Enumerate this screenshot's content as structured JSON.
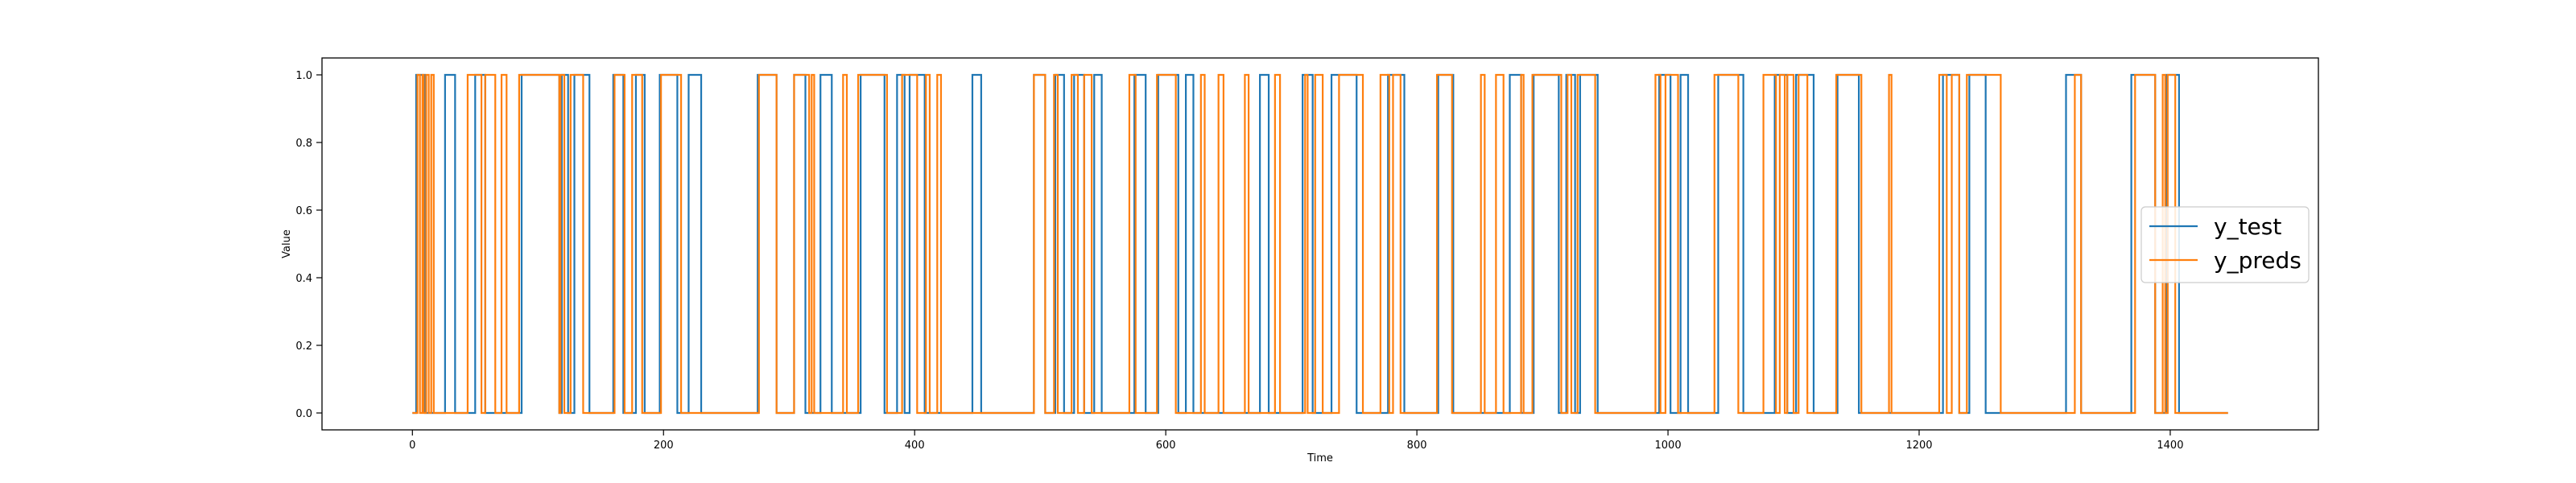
{
  "colors": {
    "y_test": "#1f77b4",
    "y_preds": "#ff7f0e",
    "axes": "#000000",
    "background": "#ffffff"
  },
  "chart_data": {
    "type": "line",
    "title": "",
    "xlabel": "Time",
    "ylabel": "Value",
    "xlim": [
      -72,
      1518
    ],
    "ylim": [
      -0.05,
      1.05
    ],
    "grid": false,
    "legend_placement": "center-right",
    "xticks": [
      0,
      200,
      400,
      600,
      800,
      1000,
      1200,
      1400
    ],
    "xtick_labels": [
      "0",
      "200",
      "400",
      "600",
      "800",
      "1000",
      "1200",
      "1400"
    ],
    "yticks": [
      0.0,
      0.2,
      0.4,
      0.6,
      0.8,
      1.0
    ],
    "ytick_labels": [
      "0.0",
      "0.2",
      "0.4",
      "0.6",
      "0.8",
      "1.0"
    ],
    "x_start": 0,
    "x_end": 1446,
    "series": [
      {
        "name": "y_test",
        "color_key": "y_test",
        "on_intervals": [
          [
            3,
            10
          ],
          [
            26,
            34
          ],
          [
            50,
            58
          ],
          [
            87,
            117
          ],
          [
            119,
            124
          ],
          [
            129,
            141
          ],
          [
            160,
            168
          ],
          [
            178,
            185
          ],
          [
            197,
            211
          ],
          [
            220,
            230
          ],
          [
            275,
            290
          ],
          [
            304,
            313
          ],
          [
            325,
            334
          ],
          [
            357,
            376
          ],
          [
            386,
            392
          ],
          [
            396,
            408
          ],
          [
            446,
            453
          ],
          [
            495,
            504
          ],
          [
            512,
            519
          ],
          [
            527,
            535
          ],
          [
            543,
            549
          ],
          [
            575,
            584
          ],
          [
            594,
            610
          ],
          [
            616,
            622
          ],
          [
            675,
            682
          ],
          [
            709,
            717
          ],
          [
            732,
            752
          ],
          [
            777,
            790
          ],
          [
            817,
            829
          ],
          [
            874,
            883
          ],
          [
            893,
            913
          ],
          [
            919,
            926
          ],
          [
            930,
            944
          ],
          [
            993,
            1002
          ],
          [
            1010,
            1016
          ],
          [
            1040,
            1060
          ],
          [
            1085,
            1095
          ],
          [
            1102,
            1116
          ],
          [
            1135,
            1152
          ],
          [
            1219,
            1232
          ],
          [
            1240,
            1253
          ],
          [
            1317,
            1329
          ],
          [
            1369,
            1388
          ],
          [
            1397,
            1407
          ]
        ]
      },
      {
        "name": "y_preds",
        "color_key": "y_preds",
        "on_intervals": [
          [
            4,
            6
          ],
          [
            8,
            9
          ],
          [
            11,
            13
          ],
          [
            15,
            17
          ],
          [
            44,
            55
          ],
          [
            58,
            66
          ],
          [
            71,
            75
          ],
          [
            85,
            117
          ],
          [
            118,
            121
          ],
          [
            126,
            136
          ],
          [
            161,
            169
          ],
          [
            175,
            183
          ],
          [
            198,
            214
          ],
          [
            276,
            290
          ],
          [
            304,
            316
          ],
          [
            318,
            320
          ],
          [
            343,
            346
          ],
          [
            355,
            378
          ],
          [
            390,
            402
          ],
          [
            409,
            412
          ],
          [
            418,
            421
          ],
          [
            495,
            504
          ],
          [
            511,
            514
          ],
          [
            525,
            530
          ],
          [
            535,
            541
          ],
          [
            571,
            576
          ],
          [
            593,
            608
          ],
          [
            628,
            631
          ],
          [
            642,
            646
          ],
          [
            663,
            666
          ],
          [
            687,
            691
          ],
          [
            711,
            713
          ],
          [
            719,
            725
          ],
          [
            738,
            757
          ],
          [
            771,
            778
          ],
          [
            781,
            787
          ],
          [
            816,
            828
          ],
          [
            851,
            854
          ],
          [
            863,
            869
          ],
          [
            883,
            885
          ],
          [
            892,
            915
          ],
          [
            920,
            923
          ],
          [
            928,
            942
          ],
          [
            990,
            994
          ],
          [
            998,
            1008
          ],
          [
            1037,
            1056
          ],
          [
            1076,
            1086
          ],
          [
            1089,
            1093
          ],
          [
            1095,
            1100
          ],
          [
            1104,
            1111
          ],
          [
            1134,
            1154
          ],
          [
            1176,
            1178
          ],
          [
            1216,
            1222
          ],
          [
            1226,
            1232
          ],
          [
            1238,
            1265
          ],
          [
            1324,
            1329
          ],
          [
            1372,
            1388
          ],
          [
            1394,
            1396
          ],
          [
            1398,
            1404
          ]
        ]
      }
    ]
  }
}
